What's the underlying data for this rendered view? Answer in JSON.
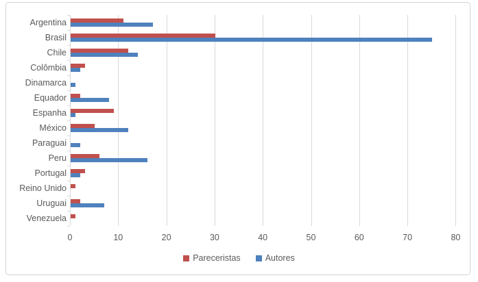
{
  "chart_data": {
    "type": "bar",
    "orientation": "horizontal",
    "title": "",
    "categories": [
      "Argentina",
      "Brasil",
      "Chile",
      "Colômbia",
      "Dinamarca",
      "Equador",
      "Espanha",
      "México",
      "Paraguai",
      "Peru",
      "Portugal",
      "Reino Unido",
      "Uruguai",
      "Venezuela"
    ],
    "series": [
      {
        "name": "Pareceristas",
        "color": "#C0504D",
        "values": [
          11,
          30,
          12,
          3,
          0,
          2,
          9,
          5,
          0,
          6,
          3,
          1,
          2,
          1
        ]
      },
      {
        "name": "Autores",
        "color": "#4F81BD",
        "values": [
          17,
          75,
          14,
          2,
          1,
          8,
          1,
          12,
          2,
          16,
          2,
          0,
          7,
          0
        ]
      }
    ],
    "xlabel": "",
    "ylabel": "",
    "x_ticks": [
      0,
      10,
      20,
      30,
      40,
      50,
      60,
      70,
      80
    ],
    "xlim": [
      0,
      80
    ],
    "grid": "vertical",
    "legend_position": "bottom-center",
    "colors": {
      "axis_text": "#595959",
      "gridline": "#D9D9D9",
      "frame_border": "#D3D3D3",
      "background": "#FFFFFF"
    }
  }
}
